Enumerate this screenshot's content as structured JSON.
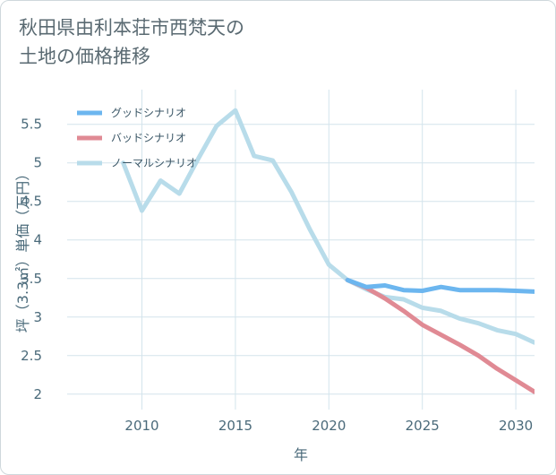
{
  "title": {
    "line1": "秋田県由利本荘市西梵天の",
    "line2": "土地の価格推移"
  },
  "chart_data": {
    "type": "line",
    "xlabel": "年",
    "ylabel": "坪（3.3㎡）単価（万円）",
    "xlim": [
      2006,
      2031
    ],
    "ylim": [
      1.8,
      5.95
    ],
    "x_ticks": [
      2010,
      2015,
      2020,
      2025,
      2030
    ],
    "y_ticks": [
      2,
      2.5,
      3,
      3.5,
      4,
      4.5,
      5,
      5.5
    ],
    "x_tick_labels": [
      "2010",
      "2015",
      "2020",
      "2025",
      "2030"
    ],
    "y_tick_labels": [
      "2",
      "2.5",
      "3",
      "3.5",
      "4",
      "4.5",
      "5",
      "5.5"
    ],
    "grid": true,
    "legend_position": "top-left",
    "series": [
      {
        "name": "グッドシナリオ",
        "color": "#6cb6ef",
        "x": [
          2021,
          2022,
          2023,
          2024,
          2025,
          2026,
          2027,
          2028,
          2029,
          2030,
          2031
        ],
        "y": [
          3.48,
          3.39,
          3.41,
          3.35,
          3.34,
          3.39,
          3.35,
          3.35,
          3.35,
          3.34,
          3.33
        ]
      },
      {
        "name": "バッドシナリオ",
        "color": "#e08a94",
        "x": [
          2021,
          2022,
          2023,
          2024,
          2025,
          2026,
          2027,
          2028,
          2029,
          2030,
          2031
        ],
        "y": [
          3.48,
          3.38,
          3.24,
          3.08,
          2.9,
          2.77,
          2.64,
          2.5,
          2.33,
          2.18,
          2.03
        ]
      },
      {
        "name": "ノーマルシナリオ",
        "color": "#b8dcea",
        "x": [
          2009,
          2010,
          2011,
          2012,
          2013,
          2014,
          2015,
          2016,
          2017,
          2018,
          2019,
          2020,
          2021,
          2022,
          2023,
          2024,
          2025,
          2026,
          2027,
          2028,
          2029,
          2030,
          2031
        ],
        "y": [
          5.0,
          4.38,
          4.77,
          4.6,
          5.05,
          5.48,
          5.68,
          5.09,
          5.03,
          4.62,
          4.13,
          3.68,
          3.48,
          3.36,
          3.26,
          3.23,
          3.12,
          3.08,
          2.98,
          2.92,
          2.83,
          2.78,
          2.67
        ]
      }
    ]
  }
}
